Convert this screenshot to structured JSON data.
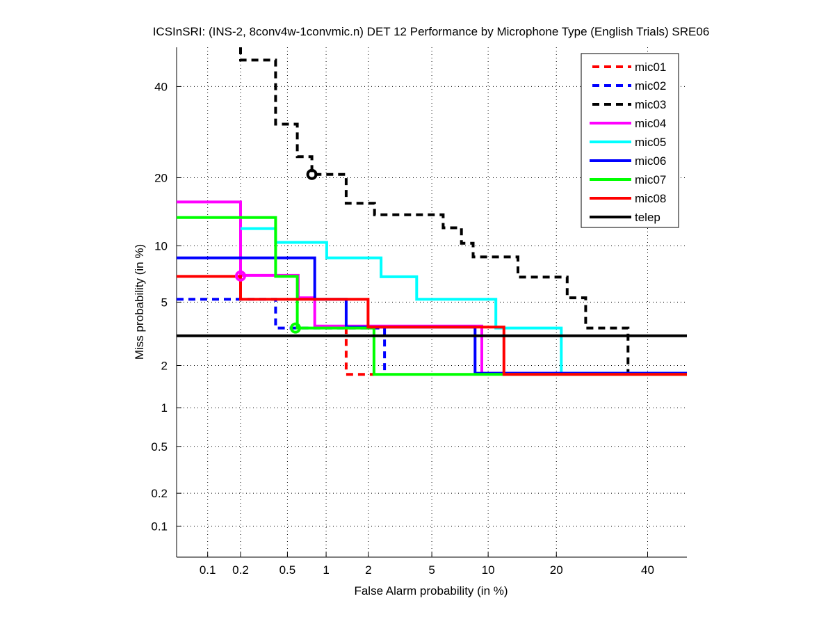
{
  "chart_data": {
    "type": "line",
    "title": "ICSInSRI: (INS-2, 8conv4w-1convmic.n) DET 12 Performance by Microphone Type (English Trials) SRE06",
    "xlabel": "False Alarm probability (in %)",
    "ylabel": "Miss probability (in %)",
    "scale": "normal-deviate (probit)",
    "xlim": [
      0.05,
      50
    ],
    "ylim": [
      0.05,
      50
    ],
    "xticks": [
      0.1,
      0.2,
      0.5,
      1,
      2,
      5,
      10,
      20,
      40
    ],
    "xtick_labels": [
      "0.1",
      "0.2",
      "0.5",
      "1",
      "2",
      "5",
      "10",
      "20",
      "40"
    ],
    "yticks": [
      0.1,
      0.2,
      0.5,
      1,
      2,
      5,
      10,
      20,
      40
    ],
    "ytick_labels": [
      "0.1",
      "0.2",
      "0.5",
      "1",
      "2",
      "5",
      "10",
      "20",
      "40"
    ],
    "grid": true,
    "legend_position": "top-right",
    "series": [
      {
        "name": "mic01",
        "color": "#ff0000",
        "dashed": true,
        "points": [
          [
            1.4,
            3.55
          ],
          [
            1.4,
            1.74
          ],
          [
            2.18,
            1.74
          ]
        ]
      },
      {
        "name": "mic02",
        "color": "#0000ff",
        "dashed": true,
        "points": [
          [
            0.05,
            5.2
          ],
          [
            0.4,
            5.2
          ],
          [
            0.4,
            3.5
          ],
          [
            2.56,
            3.5
          ],
          [
            2.56,
            1.77
          ]
        ]
      },
      {
        "name": "mic03",
        "color": "#000000",
        "dashed": true,
        "points": [
          [
            0.2,
            50
          ],
          [
            0.2,
            46.7
          ],
          [
            0.4,
            46.7
          ],
          [
            0.4,
            31
          ],
          [
            0.6,
            31
          ],
          [
            0.6,
            24
          ],
          [
            0.78,
            24
          ],
          [
            0.78,
            20.6
          ],
          [
            1.4,
            20.6
          ],
          [
            1.4,
            15.7
          ],
          [
            2.2,
            15.7
          ],
          [
            2.2,
            14
          ],
          [
            5.8,
            14
          ],
          [
            5.8,
            12.2
          ],
          [
            7.3,
            12.2
          ],
          [
            7.3,
            10.3
          ],
          [
            8.4,
            10.3
          ],
          [
            8.4,
            8.8
          ],
          [
            13.8,
            8.8
          ],
          [
            13.8,
            6.9
          ],
          [
            22,
            6.9
          ],
          [
            22,
            5.3
          ],
          [
            25.7,
            5.3
          ],
          [
            25.7,
            3.5
          ],
          [
            35.2,
            3.5
          ],
          [
            35.2,
            1.75
          ]
        ]
      },
      {
        "name": "mic04",
        "color": "#ff00ff",
        "dashed": false,
        "points": [
          [
            0.05,
            15.9
          ],
          [
            0.2,
            15.9
          ],
          [
            0.2,
            7.05
          ],
          [
            0.61,
            7.05
          ],
          [
            0.61,
            5.3
          ],
          [
            0.82,
            5.3
          ],
          [
            0.82,
            3.6
          ],
          [
            9.3,
            3.6
          ],
          [
            9.3,
            1.77
          ],
          [
            50,
            1.77
          ]
        ]
      },
      {
        "name": "mic05",
        "color": "#00ffff",
        "dashed": false,
        "points": [
          [
            0.2,
            12.1
          ],
          [
            0.4,
            12.1
          ],
          [
            0.4,
            10.4
          ],
          [
            1.01,
            10.4
          ],
          [
            1.01,
            8.7
          ],
          [
            2.43,
            8.7
          ],
          [
            2.43,
            6.93
          ],
          [
            4.07,
            6.93
          ],
          [
            4.07,
            5.2
          ],
          [
            10.9,
            5.2
          ],
          [
            10.9,
            3.5
          ],
          [
            20.9,
            3.5
          ],
          [
            20.9,
            1.77
          ],
          [
            50,
            1.77
          ]
        ]
      },
      {
        "name": "mic06",
        "color": "#0000ff",
        "dashed": false,
        "points": [
          [
            0.05,
            8.7
          ],
          [
            0.82,
            8.7
          ],
          [
            0.82,
            5.2
          ],
          [
            1.4,
            5.2
          ],
          [
            1.4,
            3.55
          ],
          [
            8.6,
            3.55
          ],
          [
            8.6,
            1.77
          ],
          [
            50,
            1.77
          ]
        ]
      },
      {
        "name": "mic07",
        "color": "#00ff00",
        "dashed": false,
        "points": [
          [
            0.05,
            13.6
          ],
          [
            0.4,
            13.6
          ],
          [
            0.4,
            6.96
          ],
          [
            0.6,
            6.96
          ],
          [
            0.6,
            3.5
          ],
          [
            2.18,
            3.5
          ],
          [
            2.18,
            1.74
          ],
          [
            50,
            1.74
          ]
        ]
      },
      {
        "name": "mic08",
        "color": "#ff0000",
        "dashed": false,
        "points": [
          [
            0.05,
            6.96
          ],
          [
            0.2,
            6.96
          ],
          [
            0.2,
            5.2
          ],
          [
            1.99,
            5.2
          ],
          [
            1.99,
            3.55
          ],
          [
            11.9,
            3.55
          ],
          [
            11.9,
            1.74
          ],
          [
            50,
            1.74
          ]
        ]
      },
      {
        "name": "telep",
        "color": "#000000",
        "dashed": false,
        "points": [
          [
            0.05,
            3.13
          ],
          [
            50,
            3.13
          ]
        ]
      }
    ],
    "markers": [
      {
        "series": "mic03",
        "x": 0.78,
        "y": 20.6,
        "color": "#000000"
      },
      {
        "series": "mic04",
        "x": 0.2,
        "y": 7.0,
        "color": "#ff00ff"
      },
      {
        "series": "mic07",
        "x": 0.58,
        "y": 3.5,
        "color": "#00ff00"
      }
    ]
  }
}
